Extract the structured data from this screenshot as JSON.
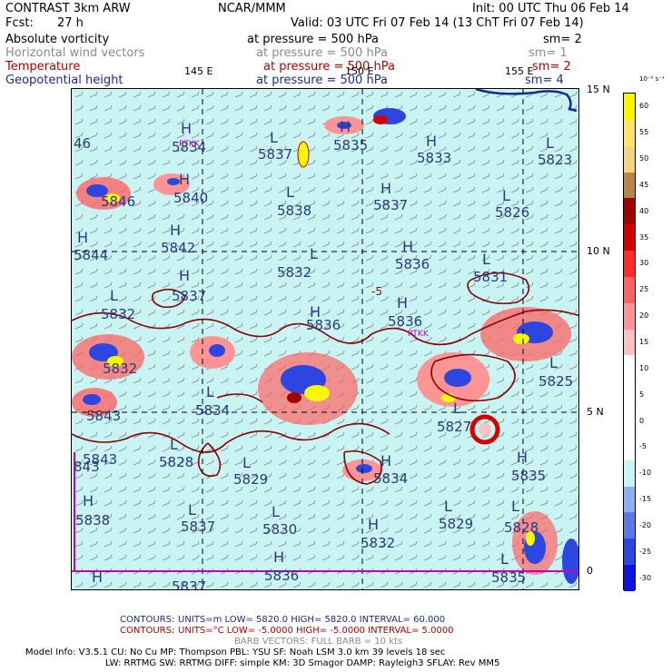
{
  "header": {
    "title_left": "CONTRAST  3km ARW",
    "title_center": "NCAR/MMM",
    "init": "Init: 00 UTC Thu 06 Feb 14",
    "fcst_label": "Fcst:",
    "fcst_value": "27 h",
    "valid": "Valid: 03 UTC Fri 07 Feb 14 (13 ChT Fri 07 Feb 14)"
  },
  "fields": [
    {
      "name": "Absolute vorticity",
      "level": "at pressure =   500 hPa",
      "sm": "sm= 2",
      "color": "#000000"
    },
    {
      "name": "Horizontal wind vectors",
      "level": "at pressure =   500 hPa",
      "sm": "sm= 1",
      "color": "#8a8a8a"
    },
    {
      "name": "Temperature",
      "level": "at pressure =   500 hPa",
      "sm": "sm= 2",
      "color": "#b00000"
    },
    {
      "name": "Geopotential height",
      "level": "at pressure =   500 hPa",
      "sm": "sm= 4",
      "color": "#1a2a8c"
    }
  ],
  "axes": {
    "lon_labels": [
      "145 E",
      "150 E",
      "155 E"
    ],
    "lat_labels": [
      "15 N",
      "10 N",
      "5 N",
      "0"
    ]
  },
  "pressure_centers": [
    {
      "type": "H",
      "value": "5834"
    },
    {
      "type": "L",
      "value": "5837"
    },
    {
      "type": "H",
      "value": "5835"
    },
    {
      "type": "H",
      "value": "5833"
    },
    {
      "type": "L",
      "value": "5823"
    },
    {
      "type": "H",
      "value": "5840"
    },
    {
      "type": "L",
      "value": "5838"
    },
    {
      "type": "H",
      "value": "5837"
    },
    {
      "type": "L",
      "value": "5826"
    },
    {
      "type": "H",
      "value": "5842"
    },
    {
      "type": "L",
      "value": "5832"
    },
    {
      "type": "H",
      "value": "5836"
    },
    {
      "type": "L",
      "value": "5831"
    },
    {
      "type": "H",
      "value": "5844"
    },
    {
      "type": "H",
      "value": "5837"
    },
    {
      "type": "L",
      "value": "5832"
    },
    {
      "type": "H",
      "value": "5836"
    },
    {
      "type": "H",
      "value": "5836"
    },
    {
      "type": "L",
      "value": "5834"
    },
    {
      "type": "L",
      "value": "5828"
    },
    {
      "type": "L",
      "value": "5829"
    },
    {
      "type": "H",
      "value": "5834"
    },
    {
      "type": "H",
      "value": "5835"
    },
    {
      "type": "H",
      "value": "5838"
    },
    {
      "type": "L",
      "value": "5837"
    },
    {
      "type": "L",
      "value": "5830"
    },
    {
      "type": "H",
      "value": "5832"
    },
    {
      "type": "L",
      "value": "5829"
    },
    {
      "type": "L",
      "value": "5828"
    },
    {
      "type": "H",
      "value": "5836"
    },
    {
      "type": "L",
      "value": "5835"
    },
    {
      "type": "L",
      "value": "5827"
    },
    {
      "type": "L",
      "value": "5825"
    },
    {
      "type": "H",
      "value": "5843"
    }
  ],
  "edge_values": [
    "46",
    "5846",
    "5832",
    "5843",
    "843",
    "5837"
  ],
  "temp_contour_label": "-5",
  "station_labels": [
    "PTKK",
    "PTKK"
  ],
  "colorbar": {
    "units": "10⁻⁵ s⁻¹",
    "labels": [
      "60",
      "55",
      "50",
      "45",
      "40",
      "35",
      "30",
      "25",
      "20",
      "15",
      "10",
      "5",
      "0",
      "-5",
      "-10",
      "-15",
      "-20",
      "-25",
      "-30"
    ],
    "colors": [
      "#f8f800",
      "#ffe36a",
      "#f2d37e",
      "#b8864a",
      "#a00000",
      "#d40000",
      "#ff2a2a",
      "#ff6464",
      "#ff9494",
      "#ffc0c0",
      "#ffffff",
      "#ffffff",
      "#ffffff",
      "#ffffff",
      "#c8f4f4",
      "#8fb0f0",
      "#5a78e8",
      "#2e46e0",
      "#1010e0"
    ]
  },
  "footer": {
    "contours1_label": "CONTOURS:",
    "contours1": "UNITS=m  LOW=  5820.0         HIGH=  5820.0         INTERVAL=   60.000",
    "contours2_label": "CONTOURS:",
    "contours2": "UNITS=°C  LOW=  -5.0000       HIGH=  -5.0000       INTERVAL=    5.0000",
    "barbs": "BARB VECTORS:  FULL BARB = 10 kts",
    "model1": "Model Info: V3.5.1    CU: No Cu    MP: Thompson    PBL: YSU      SF: Noah LSM     3.0 km   39 levels    18 sec",
    "model2": "LW: RRTMG   SW: RRTMG   DIFF: simple KM: 3D Smagor DAMP: Rayleigh3  SFLAY: Rev MM5"
  }
}
